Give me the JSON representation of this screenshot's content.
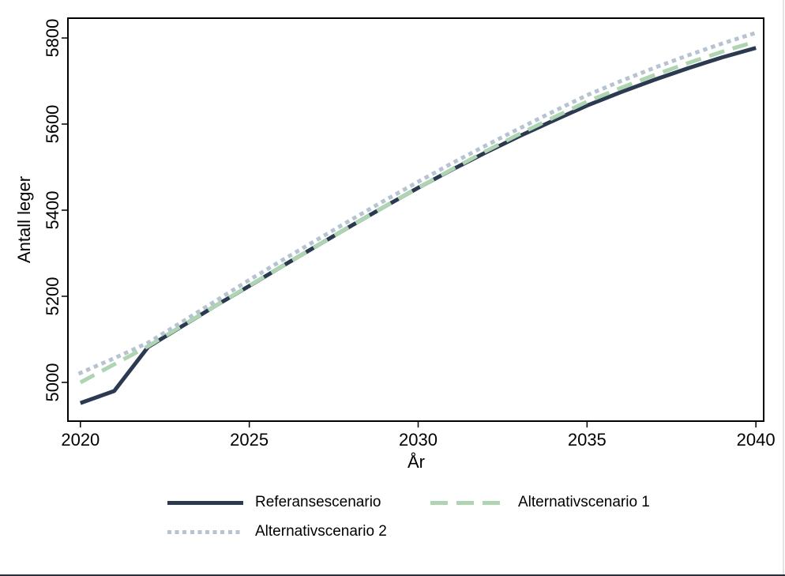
{
  "page": {
    "background": "#ffffff",
    "right_edge_color": "#e3e3e3",
    "bottom_edge_color": "#27303f"
  },
  "chart_data": {
    "type": "line",
    "title": "",
    "xlabel": "År",
    "ylabel": "Antall leger",
    "x_ticks": [
      2020,
      2025,
      2030,
      2035,
      2040
    ],
    "y_ticks": [
      5000,
      5200,
      5400,
      5600,
      5800
    ],
    "xlim": [
      2019.63,
      2040.23
    ],
    "ylim": [
      4910,
      5846
    ],
    "grid": false,
    "legend_position": "bottom",
    "frame_color": "#000000",
    "x": [
      2020,
      2021,
      2022,
      2023,
      2024,
      2025,
      2026,
      2027,
      2028,
      2029,
      2030,
      2031,
      2032,
      2033,
      2034,
      2035,
      2036,
      2037,
      2038,
      2039,
      2040
    ],
    "series": [
      {
        "name": "Referansescenario",
        "color": "#2b3a50",
        "style": "solid",
        "values": [
          4952,
          4980,
          5082,
          5130,
          5178,
          5224,
          5271,
          5317,
          5363,
          5408,
          5452,
          5494,
          5534,
          5572,
          5608,
          5643,
          5674,
          5703,
          5730,
          5755,
          5777
        ]
      },
      {
        "name": "Alternativscenario 1",
        "color": "#aed4b2",
        "style": "dashed",
        "values": [
          5000,
          5042,
          5084,
          5131,
          5178,
          5225,
          5271,
          5317,
          5363,
          5408,
          5452,
          5495,
          5537,
          5577,
          5615,
          5652,
          5684,
          5714,
          5742,
          5768,
          5792
        ]
      },
      {
        "name": "Alternativscenario 2",
        "color": "#b6c3d1",
        "style": "dotted",
        "values": [
          5022,
          5056,
          5092,
          5140,
          5189,
          5238,
          5285,
          5331,
          5377,
          5422,
          5466,
          5509,
          5550,
          5590,
          5629,
          5667,
          5700,
          5731,
          5760,
          5787,
          5812
        ]
      }
    ]
  }
}
